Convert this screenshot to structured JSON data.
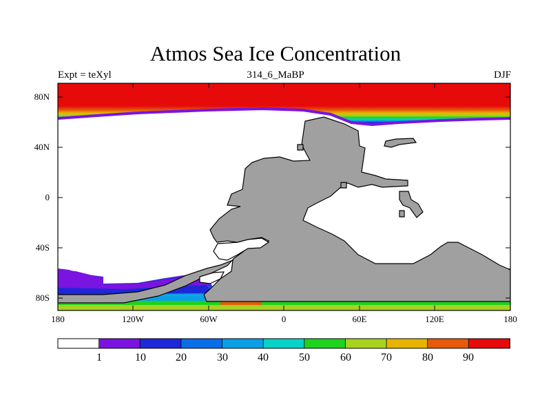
{
  "title": "Atmos Sea Ice Concentration",
  "subtitle_left": "Expt = teXyl",
  "subtitle_center": "314_6_MaBP",
  "subtitle_right": "DJF",
  "colors": {
    "land": "#a0a0a0",
    "levels": [
      "#ffffff",
      "#7a14e0",
      "#1e28d8",
      "#0a6ee6",
      "#0aa0e6",
      "#08d2c8",
      "#1ed21e",
      "#a8d21e",
      "#e6b400",
      "#e65a0a",
      "#e60a0a"
    ]
  },
  "y_ticks": [
    "80N",
    "40N",
    "0",
    "40S",
    "80S"
  ],
  "x_ticks": [
    "180",
    "120W",
    "60W",
    "0",
    "60E",
    "120E",
    "180"
  ],
  "colorbar_labels": [
    "1",
    "10",
    "20",
    "30",
    "40",
    "50",
    "60",
    "70",
    "80",
    "90"
  ]
}
